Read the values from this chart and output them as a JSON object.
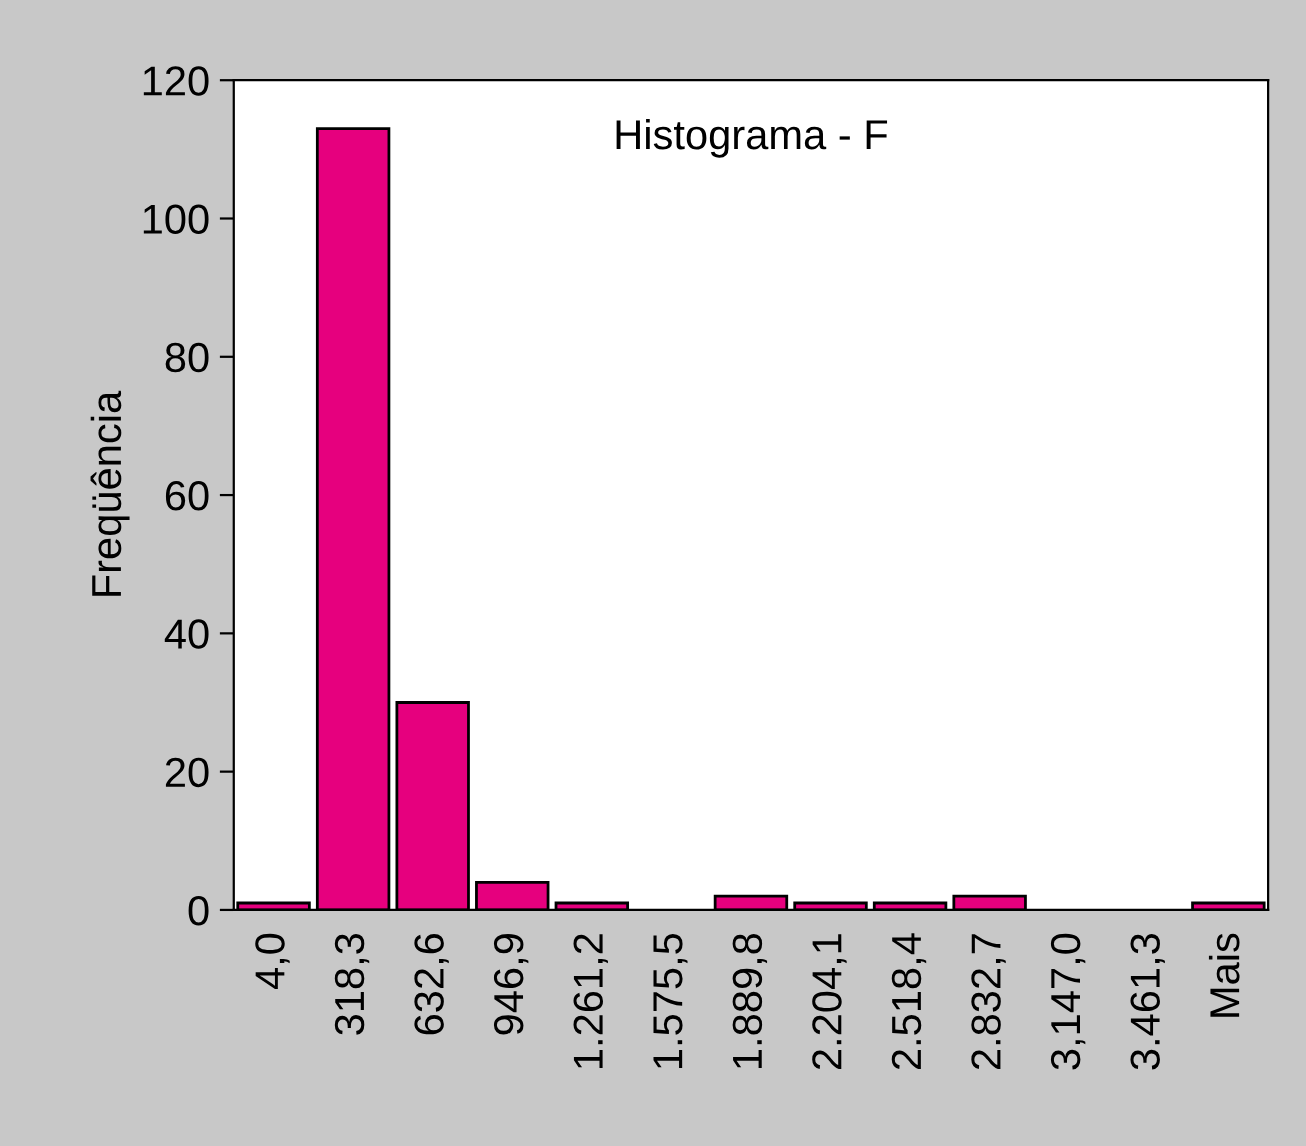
{
  "chart_data": {
    "type": "bar",
    "title": "Histograma - F",
    "ylabel": "Freqüência",
    "categories": [
      "4,0",
      "318,3",
      "632,6",
      "946,9",
      "1.261,2",
      "1.575,5",
      "1.889,8",
      "2.204,1",
      "2.518,4",
      "2.832,7",
      "3,147,0",
      "3.461,3",
      "Mais"
    ],
    "values": [
      1,
      113,
      30,
      4,
      1,
      0,
      2,
      1,
      1,
      2,
      0,
      0,
      1
    ],
    "color": "#e6007e",
    "ylim": [
      0,
      120
    ],
    "yticks": [
      0,
      20,
      40,
      60,
      80,
      100,
      120
    ],
    "grid": false,
    "legend": false
  }
}
